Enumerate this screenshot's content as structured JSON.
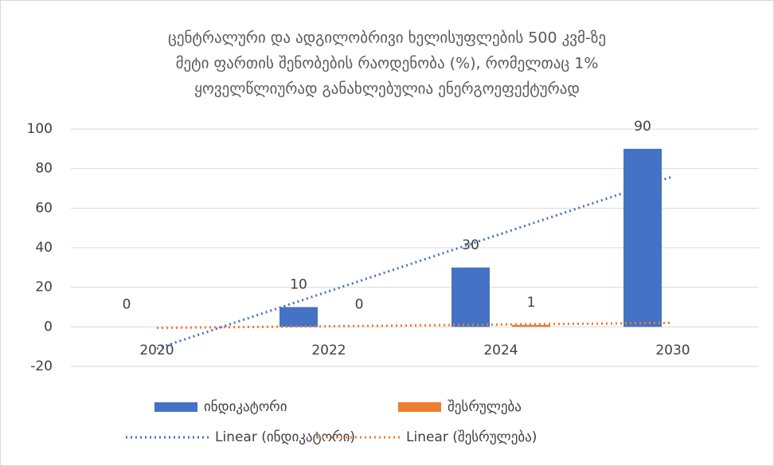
{
  "chart_data": {
    "type": "bar",
    "title": [
      "ცენტრალური და ადგილობრივი ხელისუფლების 500 კვმ-ზე",
      "მეტი ფართის შენობების რაოდენობა (%), რომელთაც 1%",
      "ყოველწლიურად განახლებულია ენერგოეფექტურად"
    ],
    "categories": [
      "2020",
      "2022",
      "2024",
      "2030"
    ],
    "series": [
      {
        "name": "ინდიკატორი",
        "color": "#4472c4",
        "values": [
          0,
          10,
          30,
          90
        ]
      },
      {
        "name": "შესრულება",
        "color": "#ed7d31",
        "values": [
          null,
          0,
          1,
          null
        ]
      },
      {
        "name": "Linear (ინდიკატორი)",
        "color": "#4472c4",
        "type": "line",
        "dash": "dotted",
        "values": [
          -11,
          18,
          47,
          76
        ]
      },
      {
        "name": "Linear (შესრულება)",
        "color": "#ed7d31",
        "type": "line",
        "dash": "dotted",
        "values": [
          -0.5,
          0.3,
          1.2,
          2
        ]
      }
    ],
    "ylim": [
      -20,
      100
    ],
    "yticks": [
      -20,
      0,
      20,
      40,
      60,
      80,
      100
    ],
    "grid": true,
    "legend": "bottom"
  }
}
